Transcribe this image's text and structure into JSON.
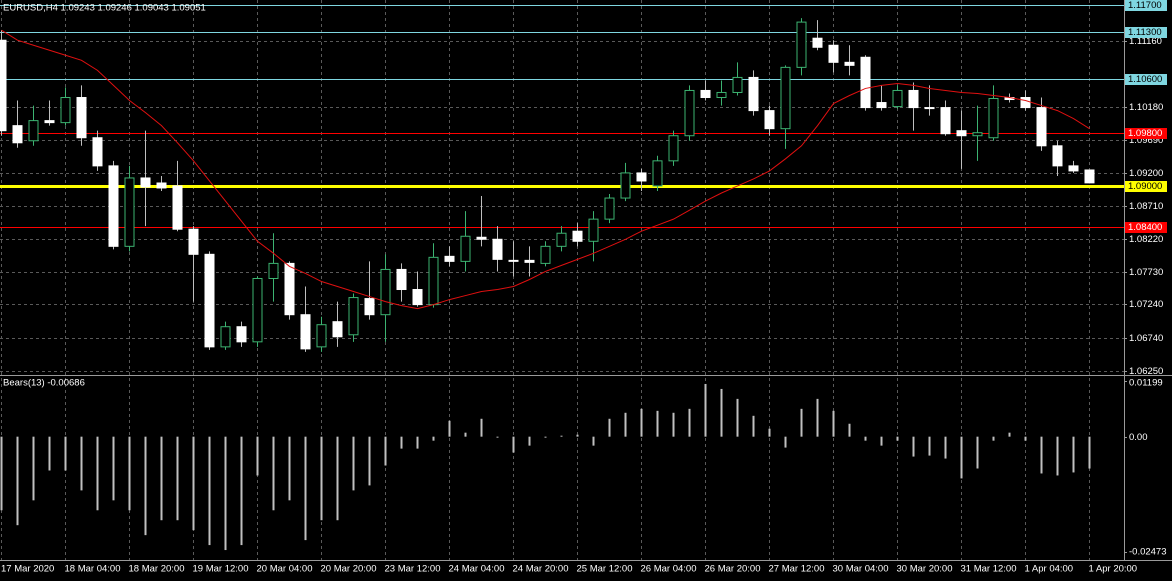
{
  "chart_data": [
    {
      "type": "candlestick",
      "title": "EURUSD,H4  1.09243 1.09246 1.09043 1.09051",
      "categories": [
        "17 Mar 2020",
        null,
        null,
        null,
        "18 Mar 04:00",
        null,
        null,
        null,
        "18 Mar 20:00",
        null,
        null,
        null,
        "19 Mar 12:00",
        null,
        null,
        null,
        "20 Mar 04:00",
        null,
        null,
        null,
        "20 Mar 20:00",
        null,
        null,
        null,
        "23 Mar 12:00",
        null,
        null,
        null,
        "24 Mar 04:00",
        null,
        null,
        null,
        "24 Mar 20:00",
        null,
        null,
        null,
        "25 Mar 12:00",
        null,
        null,
        null,
        "26 Mar 04:00",
        null,
        null,
        null,
        "26 Mar 20:00",
        null,
        null,
        null,
        "27 Mar 12:00",
        null,
        null,
        null,
        "30 Mar 04:00",
        null,
        null,
        null,
        "30 Mar 20:00",
        null,
        null,
        null,
        "31 Mar 12:00",
        null,
        null,
        null,
        "1 Apr 04:00",
        null,
        null,
        null,
        "1 Apr 20:00"
      ],
      "open": [
        1.11175,
        1.09903,
        1.09678,
        1.09978,
        1.09948,
        1.10322,
        1.09723,
        1.09304,
        1.08106,
        1.09124,
        1.09049,
        1.09005,
        1.08361,
        1.07987,
        1.06609,
        1.06909,
        1.06684,
        1.07627,
        1.07852,
        1.07088,
        1.06609,
        1.06984,
        1.06789,
        1.07328,
        1.07088,
        1.07762,
        1.07463,
        1.07238,
        1.07957,
        1.07882,
        1.08241,
        1.08211,
        1.07897,
        1.07897,
        1.07852,
        1.08106,
        1.08331,
        1.08181,
        1.08511,
        1.08825,
        1.09199,
        1.09005,
        1.09379,
        1.09753,
        1.10427,
        1.10322,
        1.10397,
        1.10621,
        1.10127,
        1.09858,
        1.10771,
        1.11205,
        1.111,
        1.10846,
        1.10921,
        1.10247,
        1.10187,
        1.10427,
        1.10172,
        1.10172,
        1.09828,
        1.09753,
        1.09723,
        1.10322,
        1.10322,
        1.10172,
        1.09603,
        1.09304,
        1.09243
      ],
      "high": [
        1.11325,
        1.10277,
        1.10202,
        1.10277,
        1.10472,
        1.10502,
        1.09828,
        1.09379,
        1.09304,
        1.09828,
        1.09154,
        1.09379,
        1.08406,
        1.08031,
        1.06984,
        1.06984,
        1.07657,
        1.08301,
        1.07882,
        1.07508,
        1.07058,
        1.07283,
        1.07403,
        1.07882,
        1.07987,
        1.07852,
        1.07732,
        1.08151,
        1.08106,
        1.0863,
        1.08855,
        1.08406,
        1.08181,
        1.08106,
        1.08181,
        1.08406,
        1.08451,
        1.0863,
        1.08885,
        1.09349,
        1.09259,
        1.09454,
        1.09828,
        1.10502,
        1.10576,
        1.10576,
        1.10846,
        1.10726,
        1.10202,
        1.10801,
        1.11505,
        1.11475,
        1.11175,
        1.111,
        1.10951,
        1.10502,
        1.10502,
        1.10546,
        1.10502,
        1.10277,
        1.10127,
        1.10202,
        1.10502,
        1.10382,
        1.10427,
        1.10322,
        1.09678,
        1.09379,
        1.09246
      ],
      "low": [
        1.09753,
        1.09573,
        1.09603,
        1.09903,
        1.09903,
        1.09603,
        1.09229,
        1.08061,
        1.08031,
        1.08406,
        1.0893,
        1.08331,
        1.07283,
        1.06564,
        1.06564,
        1.06609,
        1.06609,
        1.07283,
        1.07014,
        1.06534,
        1.06534,
        1.06609,
        1.06684,
        1.07014,
        1.06684,
        1.07283,
        1.07208,
        1.07193,
        1.07807,
        1.07732,
        1.08106,
        1.07732,
        1.07657,
        1.07657,
        1.07807,
        1.08031,
        1.08106,
        1.07882,
        1.08451,
        1.0878,
        1.0893,
        1.0893,
        1.09304,
        1.09678,
        1.10277,
        1.10202,
        1.10352,
        1.10052,
        1.09753,
        1.09558,
        1.10651,
        1.11026,
        1.10696,
        1.10651,
        1.10127,
        1.10127,
        1.10157,
        1.09828,
        1.10052,
        1.09753,
        1.09259,
        1.09379,
        1.09678,
        1.10247,
        1.10127,
        1.09528,
        1.09154,
        1.09199,
        1.09043
      ],
      "close": [
        1.09828,
        1.09648,
        1.09978,
        1.09948,
        1.10322,
        1.09723,
        1.09304,
        1.08106,
        1.09124,
        1.0899,
        1.08975,
        1.08361,
        1.07987,
        1.06609,
        1.06909,
        1.06684,
        1.07627,
        1.07852,
        1.07088,
        1.06579,
        1.06939,
        1.06759,
        1.07343,
        1.07088,
        1.07762,
        1.07463,
        1.07238,
        1.07942,
        1.07882,
        1.08256,
        1.08211,
        1.07912,
        1.07882,
        1.07867,
        1.08106,
        1.08301,
        1.08181,
        1.08511,
        1.08825,
        1.09199,
        1.09079,
        1.09379,
        1.09753,
        1.10427,
        1.10322,
        1.10397,
        1.10621,
        1.10127,
        1.09858,
        1.10771,
        1.11445,
        1.1107,
        1.10846,
        1.10801,
        1.10172,
        1.10172,
        1.10427,
        1.10172,
        1.10157,
        1.09783,
        1.09753,
        1.09798,
        1.10307,
        1.10292,
        1.10172,
        1.09603,
        1.09304,
        1.09229,
        1.09051
      ],
      "up_color": "#3cb371",
      "down_color": "#ffffff",
      "wick_color": "#bfbfbf",
      "ma": {
        "color": "#e01010",
        "values": [
          1.11325,
          1.11175,
          1.111,
          1.11026,
          1.10951,
          1.10876,
          1.10726,
          1.10502,
          1.10277,
          1.10097,
          1.09903,
          1.09648,
          1.09379,
          1.09079,
          1.0878,
          1.08481,
          1.08181,
          1.08002,
          1.07807,
          1.07702,
          1.07582,
          1.07508,
          1.07433,
          1.07358,
          1.07283,
          1.07223,
          1.07178,
          1.07238,
          1.07313,
          1.07373,
          1.07433,
          1.07463,
          1.07508,
          1.07612,
          1.07732,
          1.07822,
          1.07912,
          1.08002,
          1.08106,
          1.08211,
          1.08331,
          1.08421,
          1.08511,
          1.08645,
          1.0878,
          1.089,
          1.09005,
          1.09109,
          1.09229,
          1.09409,
          1.09603,
          1.09903,
          1.10232,
          1.10352,
          1.10457,
          1.10502,
          1.10531,
          1.10502,
          1.10457,
          1.10427,
          1.10397,
          1.10382,
          1.10352,
          1.10322,
          1.10277,
          1.10202,
          1.10127,
          1.10008,
          1.09858
        ]
      },
      "ylim": [
        1.0619,
        1.11774
      ],
      "yticks": [
        {
          "value": 1.1116,
          "label": "1.11160"
        },
        {
          "value": 1.1018,
          "label": "1.10180"
        },
        {
          "value": 1.0969,
          "label": "1.09690"
        },
        {
          "value": 1.092,
          "label": "1.09200"
        },
        {
          "value": 1.0871,
          "label": "1.08710"
        },
        {
          "value": 1.0822,
          "label": "1.08220"
        },
        {
          "value": 1.0773,
          "label": "1.07730"
        },
        {
          "value": 1.0724,
          "label": "1.07240"
        },
        {
          "value": 1.0674,
          "label": "1.06740"
        },
        {
          "value": 1.0625,
          "label": "1.06250"
        }
      ],
      "grid": true,
      "levels": [
        {
          "value": 1.117,
          "label": "1.11700",
          "color": "#7fd6e0"
        },
        {
          "value": 1.113,
          "label": "1.11300",
          "color": "#7fd6e0"
        },
        {
          "value": 1.106,
          "label": "1.10600",
          "color": "#7fd6e0"
        },
        {
          "value": 1.098,
          "label": "1.09800",
          "color": "#ff0000"
        },
        {
          "value": 1.09,
          "label": "1.09000",
          "color": "#ffff00"
        },
        {
          "value": 1.084,
          "label": "1.08400",
          "color": "#ff0000"
        }
      ]
    },
    {
      "type": "histogram",
      "title": "Bears(13) -0.00686",
      "color": "#c0c0c0",
      "values": [
        -0.01584,
        -0.01905,
        -0.0137,
        -0.00728,
        -0.00728,
        -0.01156,
        -0.01584,
        -0.0137,
        -0.01584,
        -0.02119,
        -0.01798,
        -0.01798,
        -0.02012,
        -0.02333,
        -0.0244,
        -0.02333,
        -0.00835,
        -0.01584,
        -0.0137,
        -0.02226,
        -0.01798,
        -0.01798,
        -0.01156,
        -0.01049,
        -0.00621,
        -0.00257,
        -0.00257,
        -0.00086,
        0.00342,
        0.00086,
        0.00385,
        -0.00021,
        -0.00342,
        -0.00193,
        -0.00021,
        0.00021,
        0.00043,
        -0.00193,
        0.00385,
        0.00514,
        0.00599,
        0.00556,
        0.00514,
        0.00599,
        0.01134,
        0.01027,
        0.00813,
        0.00449,
        0.00171,
        -0.00235,
        0.00599,
        0.00813,
        0.00556,
        0.00278,
        -0.00086,
        -0.00193,
        -0.00086,
        -0.00428,
        -0.00407,
        -0.00471,
        -0.00899,
        -0.00685,
        -0.00086,
        0.00086,
        -0.00086,
        -0.00792,
        -0.00835,
        -0.0077,
        -0.00686
      ],
      "ylim": [
        -0.02654,
        0.01284
      ],
      "yticks": [
        {
          "value": 0.01199,
          "label": "0.01199"
        },
        {
          "value": 0,
          "label": "0.00"
        },
        {
          "value": -0.02473,
          "label": "-0.02473"
        }
      ]
    }
  ]
}
